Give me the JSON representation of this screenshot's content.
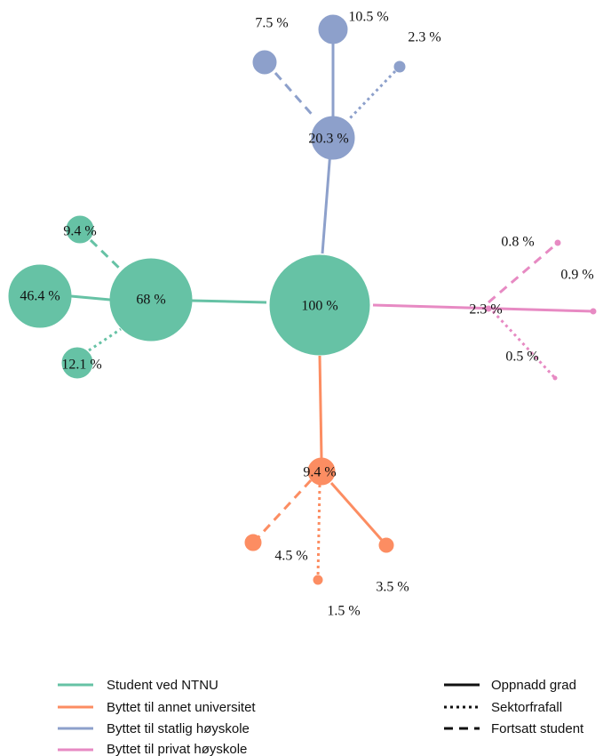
{
  "nodes": [
    {
      "label": "100 %"
    },
    {
      "label": "68 %"
    },
    {
      "label": "46.4 %"
    },
    {
      "label": "9.4 %"
    },
    {
      "label": "12.1 %"
    },
    {
      "label": "20.3 %"
    },
    {
      "label": "10.5 %"
    },
    {
      "label": "7.5 %"
    },
    {
      "label": "2.3 %"
    },
    {
      "label": "2.3 %"
    },
    {
      "label": "0.8 %"
    },
    {
      "label": "0.9 %"
    },
    {
      "label": "0.5 %"
    },
    {
      "label": "9.4 %"
    },
    {
      "label": "4.5 %"
    },
    {
      "label": "1.5 %"
    },
    {
      "label": "3.5 %"
    }
  ],
  "legend": {
    "groups": [
      "Student ved NTNU",
      "Byttet til annet universitet",
      "Byttet til statlig høyskole",
      "Byttet til privat høyskole"
    ],
    "line_styles": [
      "Oppnadd grad",
      "Sektorfrafall",
      "Fortsatt student"
    ]
  }
}
